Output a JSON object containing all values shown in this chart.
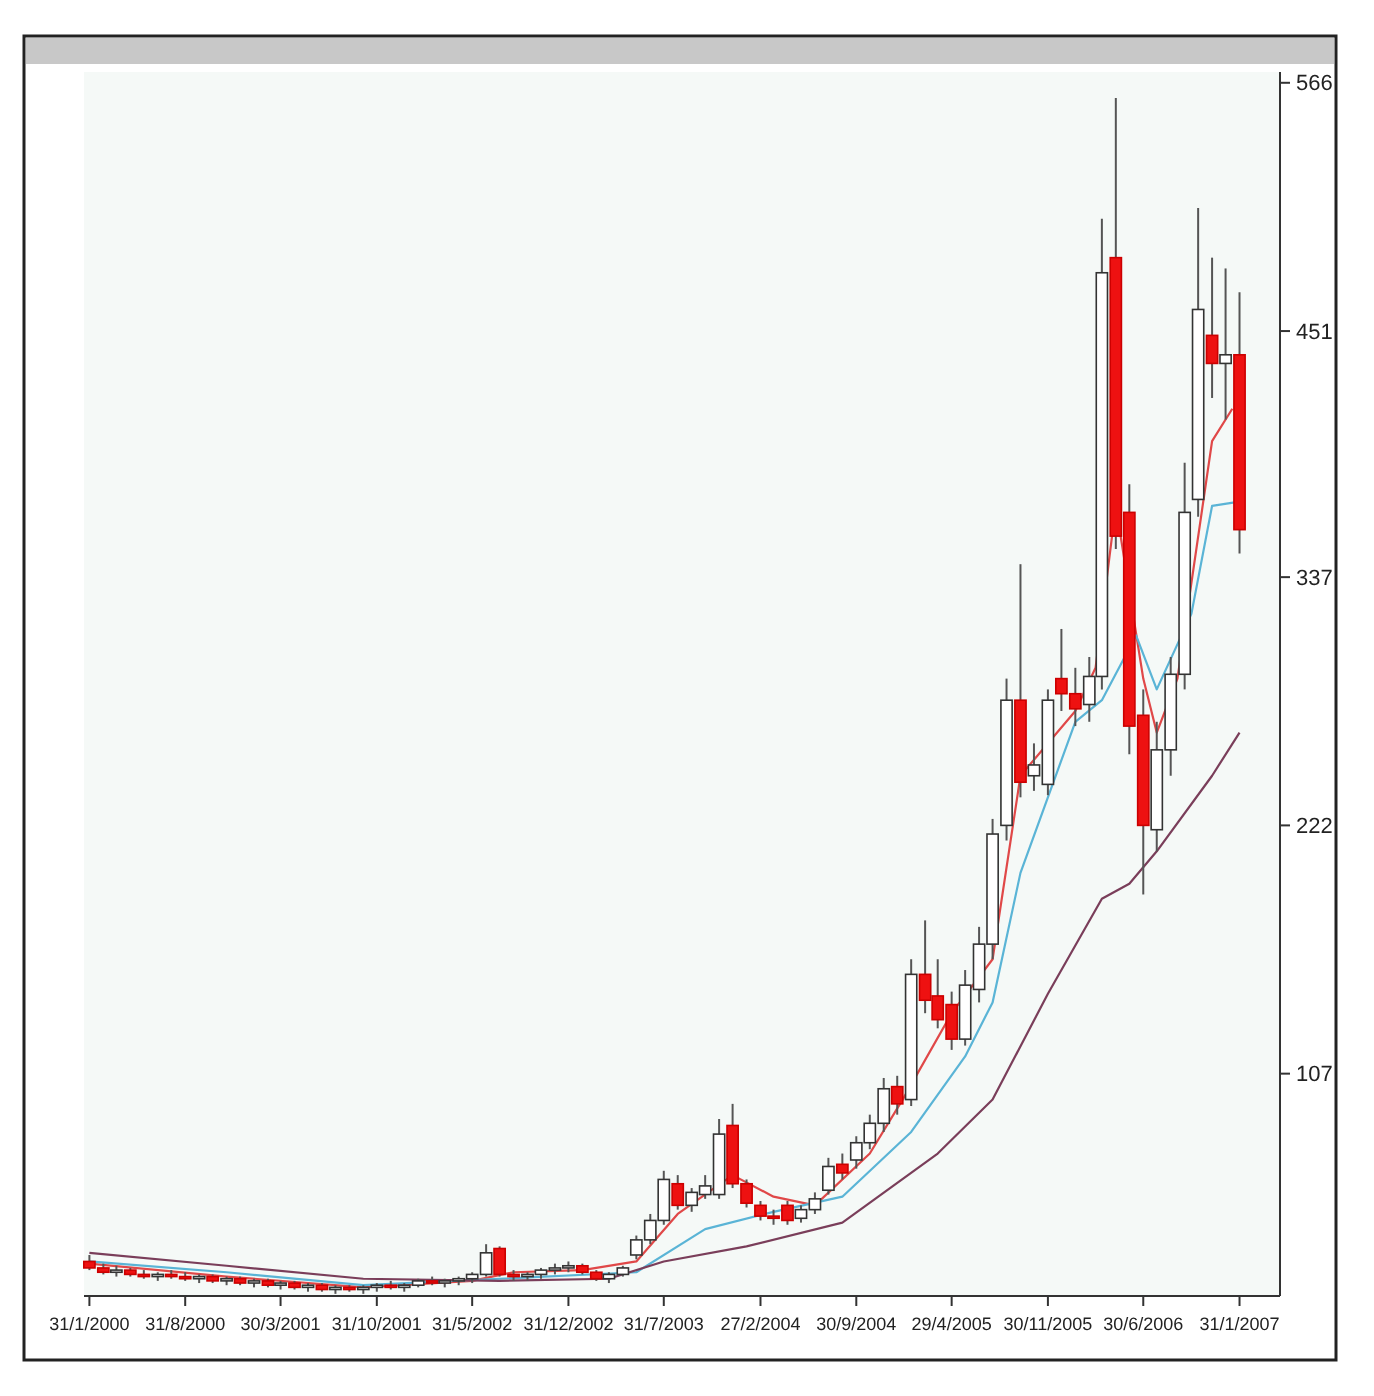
{
  "chart_data": {
    "type": "candlestick",
    "x": [
      "2000-01",
      "2000-02",
      "2000-03",
      "2000-04",
      "2000-05",
      "2000-06",
      "2000-07",
      "2000-08",
      "2000-09",
      "2000-10",
      "2000-11",
      "2000-12",
      "2001-01",
      "2001-02",
      "2001-03",
      "2001-04",
      "2001-05",
      "2001-06",
      "2001-07",
      "2001-08",
      "2001-09",
      "2001-10",
      "2001-11",
      "2001-12",
      "2002-01",
      "2002-02",
      "2002-03",
      "2002-04",
      "2002-05",
      "2002-06",
      "2002-07",
      "2002-08",
      "2002-09",
      "2002-10",
      "2002-11",
      "2002-12",
      "2003-01",
      "2003-02",
      "2003-03",
      "2003-04",
      "2003-05",
      "2003-06",
      "2003-07",
      "2003-08",
      "2003-09",
      "2003-10",
      "2003-11",
      "2003-12",
      "2004-01",
      "2004-02",
      "2004-03",
      "2004-04",
      "2004-05",
      "2004-06",
      "2004-07",
      "2004-08",
      "2004-09",
      "2004-10",
      "2004-11",
      "2004-12",
      "2005-01",
      "2005-02",
      "2005-03",
      "2005-04",
      "2005-05",
      "2005-06",
      "2005-07",
      "2005-08",
      "2005-09",
      "2005-10",
      "2005-11",
      "2005-12",
      "2006-01",
      "2006-02",
      "2006-03",
      "2006-04",
      "2006-05",
      "2006-06",
      "2006-07",
      "2006-08",
      "2006-09",
      "2006-10",
      "2006-11",
      "2006-12",
      "2007-01"
    ],
    "ohlc": [
      [
        20,
        23,
        16,
        17
      ],
      [
        17,
        19,
        14,
        15
      ],
      [
        15,
        18,
        13,
        16
      ],
      [
        16,
        17,
        13,
        14
      ],
      [
        14,
        16,
        12,
        13
      ],
      [
        13,
        15,
        11,
        14
      ],
      [
        14,
        16,
        12,
        13
      ],
      [
        13,
        15,
        11,
        12
      ],
      [
        12,
        14,
        10,
        13
      ],
      [
        13,
        14,
        10,
        11
      ],
      [
        11,
        13,
        9,
        12
      ],
      [
        12,
        13,
        9,
        10
      ],
      [
        10,
        12,
        8,
        11
      ],
      [
        11,
        12,
        8,
        9
      ],
      [
        9,
        11,
        7,
        10
      ],
      [
        10,
        11,
        7,
        8
      ],
      [
        8,
        10,
        6,
        9
      ],
      [
        9,
        10,
        6,
        7
      ],
      [
        7,
        9,
        5,
        8
      ],
      [
        8,
        9,
        6,
        7
      ],
      [
        7,
        9,
        5,
        8
      ],
      [
        8,
        10,
        6,
        9
      ],
      [
        9,
        11,
        7,
        8
      ],
      [
        8,
        10,
        6,
        9
      ],
      [
        9,
        12,
        8,
        11
      ],
      [
        11,
        13,
        9,
        10
      ],
      [
        10,
        12,
        8,
        11
      ],
      [
        11,
        13,
        9,
        12
      ],
      [
        12,
        15,
        10,
        14
      ],
      [
        14,
        28,
        13,
        24
      ],
      [
        26,
        27,
        13,
        14
      ],
      [
        14,
        16,
        11,
        13
      ],
      [
        13,
        15,
        11,
        14
      ],
      [
        14,
        17,
        12,
        16
      ],
      [
        16,
        19,
        14,
        17
      ],
      [
        17,
        20,
        15,
        18
      ],
      [
        18,
        19,
        14,
        15
      ],
      [
        15,
        16,
        11,
        12
      ],
      [
        12,
        15,
        10,
        14
      ],
      [
        14,
        18,
        13,
        17
      ],
      [
        23,
        32,
        21,
        30
      ],
      [
        30,
        42,
        28,
        39
      ],
      [
        39,
        62,
        37,
        58
      ],
      [
        56,
        60,
        44,
        46
      ],
      [
        46,
        54,
        43,
        52
      ],
      [
        51,
        60,
        49,
        55
      ],
      [
        51,
        86,
        49,
        79
      ],
      [
        83,
        93,
        54,
        56
      ],
      [
        56,
        58,
        45,
        47
      ],
      [
        46,
        48,
        39,
        41
      ],
      [
        41,
        44,
        37,
        40
      ],
      [
        46,
        48,
        37,
        39
      ],
      [
        40,
        46,
        38,
        44
      ],
      [
        44,
        52,
        42,
        49
      ],
      [
        53,
        68,
        51,
        64
      ],
      [
        65,
        70,
        58,
        61
      ],
      [
        67,
        78,
        63,
        75
      ],
      [
        75,
        88,
        72,
        84
      ],
      [
        84,
        105,
        80,
        100
      ],
      [
        101,
        106,
        88,
        93
      ],
      [
        95,
        160,
        92,
        153
      ],
      [
        153,
        178,
        135,
        141
      ],
      [
        143,
        160,
        128,
        132
      ],
      [
        139,
        145,
        118,
        123
      ],
      [
        123,
        155,
        120,
        148
      ],
      [
        146,
        175,
        140,
        167
      ],
      [
        167,
        225,
        160,
        218
      ],
      [
        222,
        290,
        215,
        280
      ],
      [
        280,
        343,
        235,
        242
      ],
      [
        245,
        260,
        238,
        250
      ],
      [
        241,
        285,
        236,
        280
      ],
      [
        290,
        313,
        275,
        283
      ],
      [
        283,
        295,
        268,
        276
      ],
      [
        278,
        300,
        270,
        291
      ],
      [
        291,
        503,
        285,
        478
      ],
      [
        485,
        559,
        350,
        356
      ],
      [
        367,
        380,
        255,
        268
      ],
      [
        273,
        285,
        190,
        222
      ],
      [
        220,
        270,
        210,
        257
      ],
      [
        257,
        300,
        245,
        292
      ],
      [
        292,
        390,
        285,
        367
      ],
      [
        373,
        508,
        365,
        461
      ],
      [
        449,
        485,
        420,
        436
      ],
      [
        436,
        480,
        410,
        440
      ],
      [
        440,
        469,
        348,
        359
      ]
    ],
    "series": [
      {
        "type": "line",
        "color": "#e04848",
        "x": [
          "2000-01",
          "2000-11",
          "2001-09",
          "2002-05",
          "2002-08",
          "2003-01",
          "2003-05",
          "2003-08",
          "2003-12",
          "2004-03",
          "2004-06",
          "2004-10",
          "2004-12-16",
          "2005-04",
          "2005-07",
          "2005-09",
          "2006-01",
          "2006-02-15",
          "2006-04",
          "2006-06",
          "2006-07",
          "2006-08-16",
          "2006-11",
          "2006-12-16"
        ],
        "values": [
          19,
          13,
          8,
          11,
          15,
          16,
          20,
          42,
          60,
          50,
          46,
          70,
          96,
          135,
          160,
          245,
          275,
          295,
          370,
          290,
          265,
          290,
          400,
          415
        ]
      },
      {
        "type": "line",
        "color": "#5ab4d6",
        "x": [
          "2000-01",
          "2000-11",
          "2001-09",
          "2002-07",
          "2003-05",
          "2003-10",
          "2004-03",
          "2004-08",
          "2005-01",
          "2005-05",
          "2005-07",
          "2005-09",
          "2006-01",
          "2006-03",
          "2006-05-16",
          "2006-07",
          "2006-09-16",
          "2006-11",
          "2007-01"
        ],
        "values": [
          20,
          15,
          9,
          12,
          15,
          35,
          43,
          50,
          80,
          115,
          140,
          200,
          270,
          280,
          310,
          285,
          320,
          370,
          372
        ]
      },
      {
        "type": "line",
        "color": "#7a3e5a",
        "x": [
          "2000-01",
          "2000-11",
          "2001-09",
          "2002-07",
          "2003-03",
          "2003-07",
          "2004-01",
          "2004-08",
          "2005-03",
          "2005-07",
          "2005-11",
          "2006-03",
          "2006-05",
          "2006-07",
          "2006-11",
          "2007-01"
        ],
        "values": [
          24,
          18,
          12,
          11,
          12,
          20,
          27,
          38,
          70,
          95,
          144,
          188,
          195,
          210,
          245,
          265
        ]
      }
    ],
    "xlim": [
      "1999-12-20",
      "2007-04-01"
    ],
    "xticks": [
      {
        "value": "2000-01",
        "label": "31/1/2000"
      },
      {
        "value": "2000-08",
        "label": "31/8/2000"
      },
      {
        "value": "2001-03",
        "label": "30/3/2001"
      },
      {
        "value": "2001-10",
        "label": "31/10/2001"
      },
      {
        "value": "2002-05",
        "label": "31/5/2002"
      },
      {
        "value": "2002-12",
        "label": "31/12/2002"
      },
      {
        "value": "2003-07",
        "label": "31/7/2003"
      },
      {
        "value": "2004-02",
        "label": "27/2/2004"
      },
      {
        "value": "2004-09",
        "label": "30/9/2004"
      },
      {
        "value": "2005-04",
        "label": "29/4/2005"
      },
      {
        "value": "2005-11",
        "label": "30/11/2005"
      },
      {
        "value": "2006-06",
        "label": "30/6/2006"
      },
      {
        "value": "2007-01",
        "label": "31/1/2007"
      }
    ],
    "ylim": [
      4,
      571
    ],
    "yticks": [
      107,
      222,
      337,
      451,
      566
    ],
    "grid": false
  }
}
